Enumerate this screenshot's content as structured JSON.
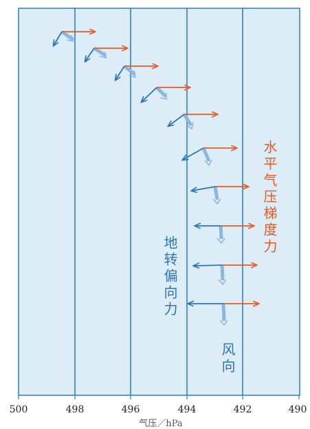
{
  "diagram": {
    "x_axis": {
      "label": "气压／hPa",
      "ticks": [
        "500",
        "498",
        "496",
        "494",
        "492",
        "490"
      ],
      "isobars": [
        498,
        496,
        494,
        492
      ]
    },
    "labels": {
      "pressure_gradient_force": "水平气压梯度力",
      "coriolis_force": "地转偏向力",
      "wind_direction": "风向"
    },
    "colors": {
      "background": "#dcedf8",
      "frame": "#2d7fc1",
      "pressure_gradient": "#ea5a24",
      "coriolis": "#2a74b8",
      "wind": "#8cb6e2"
    }
  }
}
